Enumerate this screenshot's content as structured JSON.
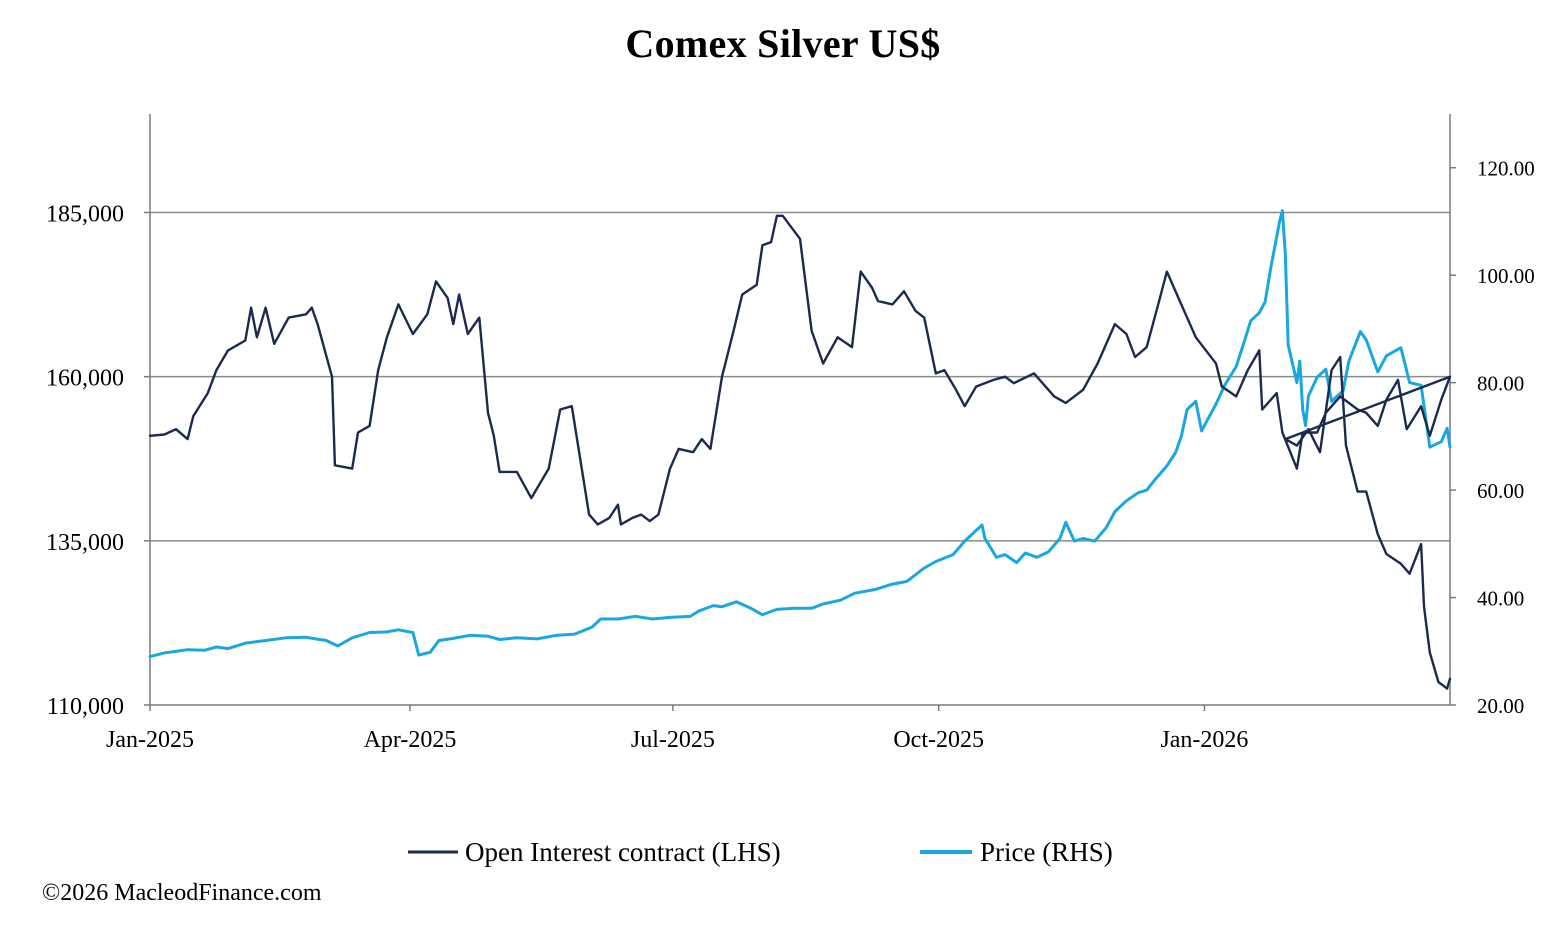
{
  "chart_data": {
    "type": "line",
    "title": "Comex Silver US$",
    "x_range": [
      "2025-01-01",
      "2026-03-27"
    ],
    "y_left": {
      "label": "",
      "range": [
        110000,
        200000
      ],
      "ticks": [
        "110,000",
        "135,000",
        "160,000",
        "185,000"
      ],
      "tick_values": [
        110000,
        135000,
        160000,
        185000
      ]
    },
    "y_right": {
      "label": "",
      "range": [
        20,
        130
      ],
      "ticks": [
        "20.00",
        "40.00",
        "60.00",
        "80.00",
        "100.00",
        "120.00"
      ],
      "tick_values": [
        20,
        40,
        60,
        80,
        100,
        120
      ]
    },
    "x_ticks": [
      {
        "label": "Jan-2025",
        "date": "2025-01-01"
      },
      {
        "label": "Apr-2025",
        "date": "2025-04-01"
      },
      {
        "label": "Jul-2025",
        "date": "2025-07-01"
      },
      {
        "label": "Oct-2025",
        "date": "2025-10-01"
      },
      {
        "label": "Jan-2026",
        "date": "2026-01-01"
      }
    ],
    "grid": {
      "horizontal": true,
      "values": [
        135000,
        160000,
        185000
      ]
    },
    "legend_position": "bottom",
    "series": [
      {
        "name": "Open Interest contract (LHS)",
        "axis": "left",
        "color": "#1b2a4e",
        "points": [
          [
            "2025-01-01",
            151000
          ],
          [
            "2025-01-06",
            151200
          ],
          [
            "2025-01-10",
            152000
          ],
          [
            "2025-01-14",
            150500
          ],
          [
            "2025-01-16",
            154000
          ],
          [
            "2025-01-21",
            157500
          ],
          [
            "2025-01-24",
            161000
          ],
          [
            "2025-01-28",
            164000
          ],
          [
            "2025-02-03",
            165500
          ],
          [
            "2025-02-05",
            170500
          ],
          [
            "2025-02-07",
            166000
          ],
          [
            "2025-02-10",
            170500
          ],
          [
            "2025-02-13",
            165000
          ],
          [
            "2025-02-18",
            169000
          ],
          [
            "2025-02-24",
            169500
          ],
          [
            "2025-02-26",
            170500
          ],
          [
            "2025-02-28",
            168000
          ],
          [
            "2025-03-05",
            160000
          ],
          [
            "2025-03-06",
            146500
          ],
          [
            "2025-03-12",
            146000
          ],
          [
            "2025-03-14",
            151500
          ],
          [
            "2025-03-18",
            152500
          ],
          [
            "2025-03-21",
            161000
          ],
          [
            "2025-03-24",
            166000
          ],
          [
            "2025-03-28",
            171000
          ],
          [
            "2025-04-02",
            166500
          ],
          [
            "2025-04-07",
            169500
          ],
          [
            "2025-04-10",
            174500
          ],
          [
            "2025-04-14",
            172000
          ],
          [
            "2025-04-16",
            168000
          ],
          [
            "2025-04-18",
            172500
          ],
          [
            "2025-04-21",
            166500
          ],
          [
            "2025-04-25",
            169000
          ],
          [
            "2025-04-28",
            154500
          ],
          [
            "2025-04-30",
            151000
          ],
          [
            "2025-05-02",
            145500
          ],
          [
            "2025-05-08",
            145500
          ],
          [
            "2025-05-13",
            141500
          ],
          [
            "2025-05-19",
            146000
          ],
          [
            "2025-05-23",
            155000
          ],
          [
            "2025-05-27",
            155500
          ],
          [
            "2025-06-02",
            139000
          ],
          [
            "2025-06-05",
            137500
          ],
          [
            "2025-06-09",
            138500
          ],
          [
            "2025-06-12",
            140500
          ],
          [
            "2025-06-13",
            137500
          ],
          [
            "2025-06-17",
            138500
          ],
          [
            "2025-06-20",
            139000
          ],
          [
            "2025-06-23",
            138000
          ],
          [
            "2025-06-26",
            139000
          ],
          [
            "2025-06-30",
            146000
          ],
          [
            "2025-07-03",
            149000
          ],
          [
            "2025-07-08",
            148500
          ],
          [
            "2025-07-11",
            150500
          ],
          [
            "2025-07-14",
            149000
          ],
          [
            "2025-07-18",
            160000
          ],
          [
            "2025-07-22",
            167000
          ],
          [
            "2025-07-25",
            172500
          ],
          [
            "2025-07-30",
            174000
          ],
          [
            "2025-08-01",
            180000
          ],
          [
            "2025-08-04",
            180500
          ],
          [
            "2025-08-06",
            184500
          ],
          [
            "2025-08-08",
            184500
          ],
          [
            "2025-08-14",
            181000
          ],
          [
            "2025-08-18",
            167000
          ],
          [
            "2025-08-22",
            162000
          ],
          [
            "2025-08-27",
            166000
          ],
          [
            "2025-09-01",
            164500
          ],
          [
            "2025-09-04",
            176000
          ],
          [
            "2025-09-08",
            173500
          ],
          [
            "2025-09-10",
            171500
          ],
          [
            "2025-09-15",
            171000
          ],
          [
            "2025-09-19",
            173000
          ],
          [
            "2025-09-23",
            170000
          ],
          [
            "2025-09-26",
            169000
          ],
          [
            "2025-09-30",
            160500
          ],
          [
            "2025-10-03",
            161000
          ],
          [
            "2025-10-07",
            158000
          ],
          [
            "2025-10-10",
            155500
          ],
          [
            "2025-10-14",
            158500
          ],
          [
            "2025-10-20",
            159500
          ],
          [
            "2025-10-24",
            160000
          ],
          [
            "2025-10-27",
            159000
          ],
          [
            "2025-11-03",
            160500
          ],
          [
            "2025-11-10",
            157000
          ],
          [
            "2025-11-14",
            156000
          ],
          [
            "2025-11-20",
            158000
          ],
          [
            "2025-11-25",
            162000
          ],
          [
            "2025-12-01",
            168000
          ],
          [
            "2025-12-05",
            166500
          ],
          [
            "2025-12-08",
            163000
          ],
          [
            "2025-12-12",
            164500
          ],
          [
            "2025-12-16",
            171000
          ],
          [
            "2025-12-19",
            176000
          ],
          [
            "2025-12-23",
            172000
          ],
          [
            "2025-12-29",
            166000
          ],
          [
            "2026-01-05",
            162000
          ],
          [
            "2026-01-07",
            158500
          ],
          [
            "2026-01-12",
            157000
          ],
          [
            "2026-01-16",
            161000
          ],
          [
            "2026-01-20",
            164000
          ],
          [
            "2026-01-21",
            155000
          ],
          [
            "2026-01-26",
            157500
          ],
          [
            "2026-01-28",
            151500
          ],
          [
            "2026-02-02",
            146000
          ],
          [
            "2026-02-04",
            151500
          ],
          [
            "2026-02-09",
            151500
          ],
          [
            "2026-02-12",
            154500
          ],
          [
            "2026-02-17",
            157000
          ],
          [
            "2026-02-23",
            155000
          ],
          [
            "2026-02-26",
            154500
          ],
          [
            "2026-03-02",
            152500
          ],
          [
            "2026-03-05",
            156500
          ],
          [
            "2026-03-09",
            159500
          ],
          [
            "2026-03-12",
            152000
          ],
          [
            "2026-03-17",
            155500
          ],
          [
            "2026-03-20",
            151000
          ],
          [
            "2026-03-24",
            156500
          ],
          [
            "2026-03-27",
            160000
          ],
          [
            "2026-01-29",
            150500
          ],
          [
            "2026-02-02",
            149500
          ],
          [
            "2026-02-06",
            152000
          ],
          [
            "2026-02-10",
            148500
          ],
          [
            "2026-02-14",
            161000
          ],
          [
            "2026-02-17",
            163000
          ],
          [
            "2026-02-19",
            149500
          ],
          [
            "2026-02-23",
            142500
          ],
          [
            "2026-02-26",
            142500
          ],
          [
            "2026-03-02",
            136000
          ],
          [
            "2026-03-05",
            133000
          ],
          [
            "2026-03-10",
            131500
          ],
          [
            "2026-03-13",
            130000
          ],
          [
            "2026-03-17",
            134500
          ],
          [
            "2026-03-18",
            125000
          ],
          [
            "2026-03-20",
            118000
          ],
          [
            "2026-03-23",
            113500
          ],
          [
            "2026-03-26",
            112500
          ],
          [
            "2026-03-27",
            114000
          ]
        ]
      },
      {
        "name": "Price (RHS)",
        "axis": "right",
        "color": "#1aa7e0",
        "points": [
          [
            "2025-01-01",
            29.0
          ],
          [
            "2025-01-06",
            29.7
          ],
          [
            "2025-01-10",
            30.0
          ],
          [
            "2025-01-14",
            30.3
          ],
          [
            "2025-01-20",
            30.2
          ],
          [
            "2025-01-24",
            30.8
          ],
          [
            "2025-01-28",
            30.5
          ],
          [
            "2025-02-03",
            31.5
          ],
          [
            "2025-02-10",
            32.0
          ],
          [
            "2025-02-17",
            32.5
          ],
          [
            "2025-02-24",
            32.6
          ],
          [
            "2025-03-03",
            32.0
          ],
          [
            "2025-03-07",
            31.0
          ],
          [
            "2025-03-12",
            32.5
          ],
          [
            "2025-03-18",
            33.5
          ],
          [
            "2025-03-24",
            33.6
          ],
          [
            "2025-03-28",
            34.0
          ],
          [
            "2025-04-02",
            33.5
          ],
          [
            "2025-04-04",
            29.3
          ],
          [
            "2025-04-08",
            29.8
          ],
          [
            "2025-04-11",
            32.0
          ],
          [
            "2025-04-16",
            32.4
          ],
          [
            "2025-04-22",
            33.0
          ],
          [
            "2025-04-28",
            32.8
          ],
          [
            "2025-05-02",
            32.2
          ],
          [
            "2025-05-08",
            32.5
          ],
          [
            "2025-05-15",
            32.3
          ],
          [
            "2025-05-22",
            33.0
          ],
          [
            "2025-05-28",
            33.2
          ],
          [
            "2025-06-03",
            34.5
          ],
          [
            "2025-06-06",
            36.0
          ],
          [
            "2025-06-12",
            36.0
          ],
          [
            "2025-06-18",
            36.5
          ],
          [
            "2025-06-24",
            36.0
          ],
          [
            "2025-06-30",
            36.3
          ],
          [
            "2025-07-07",
            36.5
          ],
          [
            "2025-07-10",
            37.5
          ],
          [
            "2025-07-15",
            38.5
          ],
          [
            "2025-07-18",
            38.3
          ],
          [
            "2025-07-23",
            39.2
          ],
          [
            "2025-07-28",
            38.0
          ],
          [
            "2025-08-01",
            36.8
          ],
          [
            "2025-08-06",
            37.8
          ],
          [
            "2025-08-12",
            38.0
          ],
          [
            "2025-08-18",
            38.0
          ],
          [
            "2025-08-22",
            38.8
          ],
          [
            "2025-08-28",
            39.5
          ],
          [
            "2025-09-02",
            40.8
          ],
          [
            "2025-09-09",
            41.5
          ],
          [
            "2025-09-15",
            42.5
          ],
          [
            "2025-09-20",
            43.0
          ],
          [
            "2025-09-26",
            45.5
          ],
          [
            "2025-09-30",
            46.7
          ],
          [
            "2025-10-06",
            48.0
          ],
          [
            "2025-10-10",
            50.5
          ],
          [
            "2025-10-14",
            52.5
          ],
          [
            "2025-10-16",
            53.5
          ],
          [
            "2025-10-17",
            51.0
          ],
          [
            "2025-10-21",
            47.5
          ],
          [
            "2025-10-24",
            48.0
          ],
          [
            "2025-10-28",
            46.5
          ],
          [
            "2025-10-31",
            48.3
          ],
          [
            "2025-11-04",
            47.5
          ],
          [
            "2025-11-08",
            48.5
          ],
          [
            "2025-11-12",
            51.0
          ],
          [
            "2025-11-14",
            54.0
          ],
          [
            "2025-11-17",
            50.5
          ],
          [
            "2025-11-20",
            51.0
          ],
          [
            "2025-11-24",
            50.5
          ],
          [
            "2025-11-28",
            53.0
          ],
          [
            "2025-12-01",
            56.0
          ],
          [
            "2025-12-05",
            58.0
          ],
          [
            "2025-12-09",
            59.5
          ],
          [
            "2025-12-12",
            60.0
          ],
          [
            "2025-12-15",
            62.0
          ],
          [
            "2025-12-19",
            64.5
          ],
          [
            "2025-12-22",
            67.0
          ],
          [
            "2025-12-24",
            70.0
          ],
          [
            "2025-12-26",
            75.0
          ],
          [
            "2025-12-29",
            76.5
          ],
          [
            "2025-12-31",
            71.0
          ],
          [
            "2026-01-02",
            73.0
          ],
          [
            "2026-01-05",
            76.0
          ],
          [
            "2026-01-08",
            79.5
          ],
          [
            "2026-01-12",
            83.0
          ],
          [
            "2026-01-15",
            88.0
          ],
          [
            "2026-01-17",
            91.5
          ],
          [
            "2026-01-20",
            93.0
          ],
          [
            "2026-01-22",
            95.0
          ],
          [
            "2026-01-24",
            101.5
          ],
          [
            "2026-01-27",
            110.0
          ],
          [
            "2026-01-28",
            112.0
          ],
          [
            "2026-01-29",
            104.0
          ],
          [
            "2026-01-30",
            87.0
          ],
          [
            "2026-02-02",
            80.0
          ],
          [
            "2026-02-03",
            84.0
          ],
          [
            "2026-02-04",
            75.0
          ],
          [
            "2026-02-05",
            72.0
          ],
          [
            "2026-02-06",
            77.5
          ],
          [
            "2026-02-09",
            81.0
          ],
          [
            "2026-02-12",
            82.5
          ],
          [
            "2026-02-14",
            76.5
          ],
          [
            "2026-02-18",
            78.5
          ],
          [
            "2026-02-20",
            84.0
          ],
          [
            "2026-02-24",
            89.5
          ],
          [
            "2026-02-26",
            88.0
          ],
          [
            "2026-03-02",
            82.0
          ],
          [
            "2026-03-05",
            85.0
          ],
          [
            "2026-03-10",
            86.5
          ],
          [
            "2026-03-13",
            80.0
          ],
          [
            "2026-03-17",
            79.5
          ],
          [
            "2026-03-20",
            68.0
          ],
          [
            "2026-03-24",
            69.0
          ],
          [
            "2026-03-26",
            71.5
          ],
          [
            "2026-03-27",
            68.0
          ]
        ]
      }
    ],
    "footer": "©2026 MacleodFinance.com"
  }
}
